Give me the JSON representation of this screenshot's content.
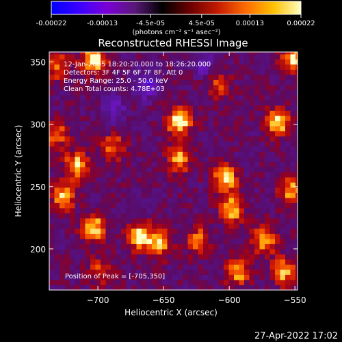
{
  "colorbar": {
    "tick_labels": [
      "-0.00022",
      "-0.00013",
      "-4.5e-05",
      "4.5e-05",
      "0.00013",
      "0.00022"
    ],
    "tick_values": [
      -0.00022,
      -0.00013,
      -4.5e-05,
      4.5e-05,
      0.00013,
      0.00022
    ],
    "range": [
      -0.00022,
      0.00022
    ],
    "units": "(photons cm⁻² s⁻¹ asec⁻²)",
    "colors": [
      "#0000ff",
      "#3a00ff",
      "#7a00d8",
      "#5a1878",
      "#000000",
      "#6a0000",
      "#c41a00",
      "#ff6a00",
      "#ffc000",
      "#ffffc0"
    ]
  },
  "chart_data": {
    "type": "heatmap",
    "title": "Reconstructed RHESSI Image",
    "xlabel": "Heliocentric X (arcsec)",
    "ylabel": "Heliocentric Y (arcsec)",
    "xlim": [
      -737,
      -548
    ],
    "ylim": [
      167,
      358
    ],
    "x_ticks": [
      -700,
      -650,
      -600,
      -550
    ],
    "x_tick_labels": [
      "−700",
      "−650",
      "−600",
      "−550"
    ],
    "y_ticks": [
      200,
      250,
      300,
      350
    ],
    "y_tick_labels": [
      "200",
      "250",
      "300",
      "350"
    ],
    "info_lines": [
      "12-Jan-2005 18:20:20.000 to 18:26:20.000",
      "Detectors: 3F 4F 5F 6F 7F 8F, Att 0",
      "Energy Range: 25.0 - 50.0 keV",
      "Clean      Total counts: 4.78E+03"
    ],
    "peak_label": "Position of Peak = [-705,350]",
    "peak": [
      -705,
      350
    ],
    "hotspots": [
      {
        "x": -705,
        "y": 350,
        "intensity": 1.0
      },
      {
        "x": -640,
        "y": 300,
        "intensity": 0.95
      },
      {
        "x": -640,
        "y": 270,
        "intensity": 0.7
      },
      {
        "x": -705,
        "y": 215,
        "intensity": 0.85
      },
      {
        "x": -670,
        "y": 208,
        "intensity": 0.9
      },
      {
        "x": -655,
        "y": 203,
        "intensity": 0.75
      },
      {
        "x": -625,
        "y": 205,
        "intensity": 0.6
      },
      {
        "x": -718,
        "y": 265,
        "intensity": 0.8
      },
      {
        "x": -728,
        "y": 240,
        "intensity": 0.75
      },
      {
        "x": -605,
        "y": 255,
        "intensity": 0.85
      },
      {
        "x": -600,
        "y": 230,
        "intensity": 0.8
      },
      {
        "x": -595,
        "y": 180,
        "intensity": 0.75
      },
      {
        "x": -565,
        "y": 300,
        "intensity": 0.9
      },
      {
        "x": -553,
        "y": 350,
        "intensity": 0.85
      },
      {
        "x": -575,
        "y": 205,
        "intensity": 0.8
      },
      {
        "x": -555,
        "y": 245,
        "intensity": 0.7
      },
      {
        "x": -733,
        "y": 345,
        "intensity": 0.6
      },
      {
        "x": -733,
        "y": 290,
        "intensity": 0.55
      },
      {
        "x": -690,
        "y": 280,
        "intensity": 0.55
      },
      {
        "x": -700,
        "y": 180,
        "intensity": 0.5
      },
      {
        "x": -610,
        "y": 330,
        "intensity": 0.45
      },
      {
        "x": -560,
        "y": 180,
        "intensity": 0.75
      }
    ],
    "cold_regions": [
      {
        "x": -665,
        "y": 330,
        "intensity": -0.6
      },
      {
        "x": -690,
        "y": 310,
        "intensity": -0.45
      },
      {
        "x": -620,
        "y": 345,
        "intensity": -0.4
      }
    ]
  },
  "footer": {
    "timestamp": "27-Apr-2022 17:02"
  }
}
